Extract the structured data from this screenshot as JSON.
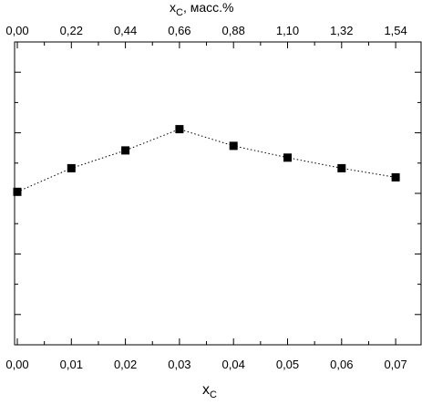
{
  "chart_data": {
    "type": "scatter",
    "x_bottom_label": "x",
    "x_bottom_label_sub": "C",
    "x_top_label_prefix": "x",
    "x_top_label_sub": "C",
    "x_top_label_suffix": ", масс.%",
    "x_bottom_range": [
      0,
      0.075
    ],
    "x_bottom_ticks": [
      {
        "value": 0.0,
        "label": "0,00"
      },
      {
        "value": 0.01,
        "label": "0,01"
      },
      {
        "value": 0.02,
        "label": "0,02"
      },
      {
        "value": 0.03,
        "label": "0,03"
      },
      {
        "value": 0.04,
        "label": "0,04"
      },
      {
        "value": 0.05,
        "label": "0,05"
      },
      {
        "value": 0.06,
        "label": "0,06"
      },
      {
        "value": 0.07,
        "label": "0,07"
      }
    ],
    "x_top_ticks": [
      {
        "value": 0.0,
        "label": "0,00"
      },
      {
        "value": 0.01,
        "label": "0,22"
      },
      {
        "value": 0.02,
        "label": "0,44"
      },
      {
        "value": 0.03,
        "label": "0,66"
      },
      {
        "value": 0.04,
        "label": "0,88"
      },
      {
        "value": 0.05,
        "label": "1,10"
      },
      {
        "value": 0.06,
        "label": "1,32"
      },
      {
        "value": 0.07,
        "label": "1,54"
      }
    ],
    "y_range": [
      0,
      1
    ],
    "y_ticks": [
      0.1,
      0.3,
      0.5,
      0.7,
      0.9
    ],
    "y_minor_ticks": [
      0.2,
      0.4,
      0.6,
      0.8
    ],
    "series": [
      {
        "marker": "square",
        "line_style": "dotted",
        "color": "#000000",
        "x": [
          0.0,
          0.01,
          0.02,
          0.03,
          0.04,
          0.05,
          0.06,
          0.07
        ],
        "y": [
          0.505,
          0.583,
          0.642,
          0.712,
          0.657,
          0.618,
          0.583,
          0.553
        ]
      }
    ],
    "grid": false
  }
}
